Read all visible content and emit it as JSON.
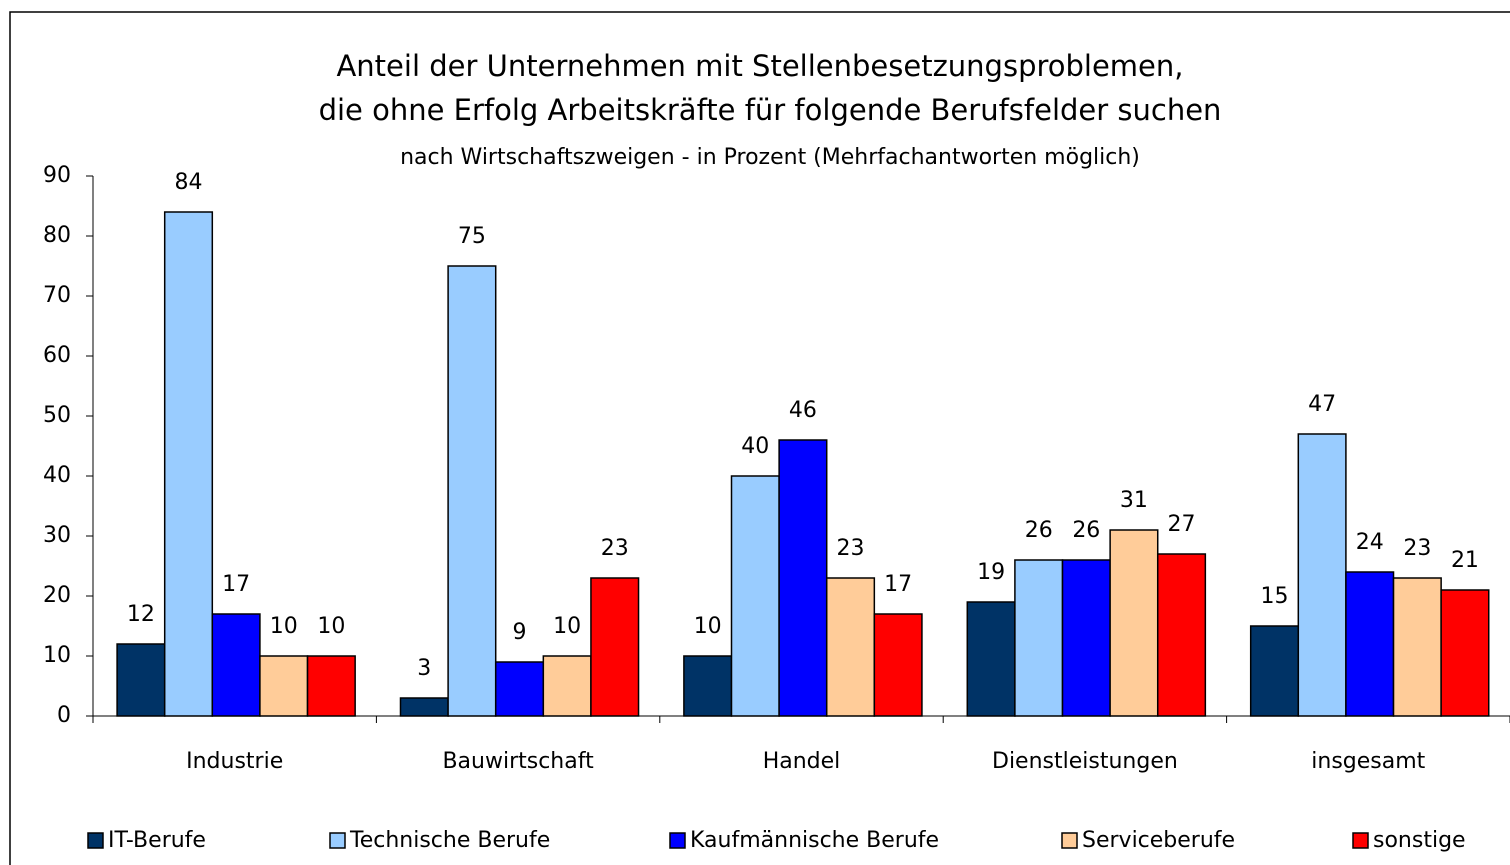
{
  "chart_data": {
    "type": "bar",
    "title": [
      "Anteil der Unternehmen mit Stellenbesetzungsproblemen,",
      "die ohne Erfolg Arbeitskräfte für folgende Berufsfelder suchen"
    ],
    "subtitle": "nach Wirtschaftszweigen - in Prozent (Mehrfachantworten möglich)",
    "categories": [
      "Industrie",
      "Bauwirtschaft",
      "Handel",
      "Dienstleistungen",
      "insgesamt"
    ],
    "series": [
      {
        "name": "IT-Berufe",
        "color": "#003366",
        "values": [
          12,
          3,
          10,
          19,
          15
        ]
      },
      {
        "name": "Technische Berufe",
        "color": "#99ccff",
        "values": [
          84,
          75,
          40,
          26,
          47
        ]
      },
      {
        "name": "Kaufmännische Berufe",
        "color": "#0000ff",
        "values": [
          17,
          9,
          46,
          26,
          24
        ]
      },
      {
        "name": "Serviceberufe",
        "color": "#ffcc99",
        "values": [
          10,
          10,
          23,
          31,
          23
        ]
      },
      {
        "name": "sonstige",
        "color": "#ff0000",
        "values": [
          10,
          23,
          17,
          27,
          21
        ]
      }
    ],
    "ylim": [
      0,
      90
    ],
    "yticks": [
      0,
      10,
      20,
      30,
      40,
      50,
      60,
      70,
      80,
      90
    ],
    "grid": false
  }
}
